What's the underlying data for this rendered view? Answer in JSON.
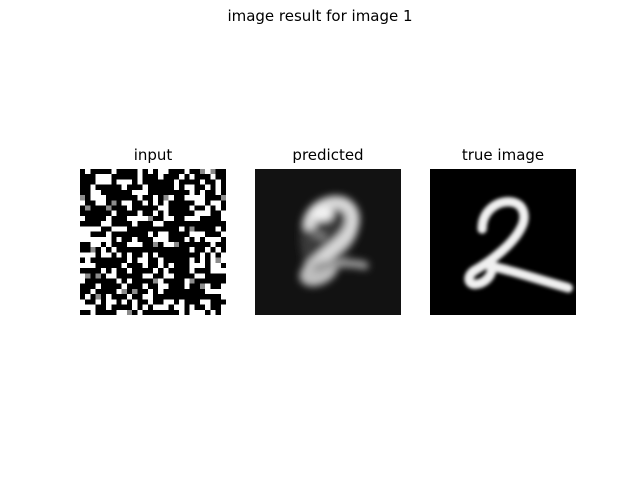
{
  "figure": {
    "title": "image result for image 1"
  },
  "panels": [
    {
      "title": "input",
      "image": "noisy binary-pixel input image of a handwritten digit"
    },
    {
      "title": "predicted",
      "image": "blurred grayscale reconstruction of the handwritten digit 2"
    },
    {
      "title": "true image",
      "image": "clean grayscale handwritten digit 2"
    }
  ],
  "colors": {
    "background": "#ffffff",
    "image_background": "#000000",
    "digit": "#ffffff",
    "predicted_background": "#121212"
  }
}
